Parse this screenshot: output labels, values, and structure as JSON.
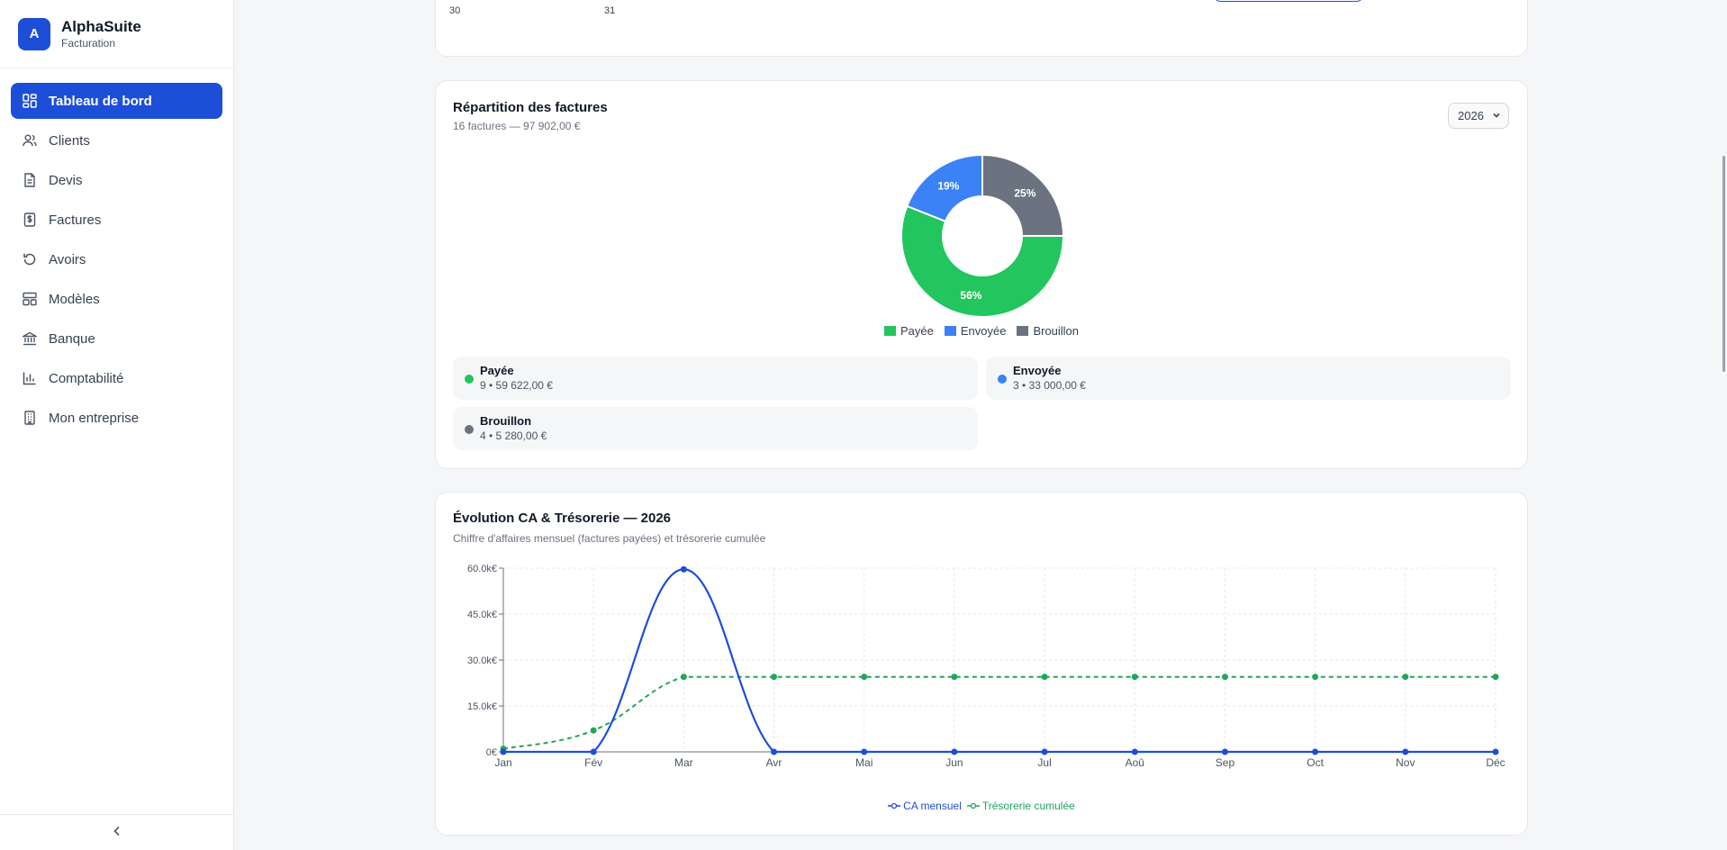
{
  "app": {
    "name": "AlphaSuite",
    "subtitle": "Facturation",
    "logo_letter": "A"
  },
  "nav": [
    {
      "label": "Tableau de bord",
      "icon": "dashboard-icon",
      "active": true
    },
    {
      "label": "Clients",
      "icon": "users-icon"
    },
    {
      "label": "Devis",
      "icon": "document-icon"
    },
    {
      "label": "Factures",
      "icon": "invoice-icon"
    },
    {
      "label": "Avoirs",
      "icon": "refund-icon"
    },
    {
      "label": "Modèles",
      "icon": "template-icon"
    },
    {
      "label": "Banque",
      "icon": "bank-icon"
    },
    {
      "label": "Comptabilité",
      "icon": "bar-chart-icon"
    },
    {
      "label": "Mon entreprise",
      "icon": "building-icon"
    }
  ],
  "top_card": {
    "ticks": [
      "30",
      "31"
    ]
  },
  "invoices": {
    "title": "Répartition des factures",
    "subtitle": "16 factures — 97 902,00 €",
    "year": "2026",
    "legend": [
      {
        "label": "Payée",
        "color": "#22c55e"
      },
      {
        "label": "Envoyée",
        "color": "#3b82f6"
      },
      {
        "label": "Brouillon",
        "color": "#6b7280"
      }
    ],
    "stats": [
      {
        "label": "Payée",
        "value": "9 • 59 622,00 €",
        "color": "#22c55e"
      },
      {
        "label": "Envoyée",
        "value": "3 • 33 000,00 €",
        "color": "#3b82f6"
      },
      {
        "label": "Brouillon",
        "value": "4 • 5 280,00 €",
        "color": "#6b7280"
      }
    ]
  },
  "evolution": {
    "title": "Évolution CA & Trésorerie — 2026",
    "subtitle": "Chiffre d'affaires mensuel (factures payées) et trésorerie cumulée"
  },
  "chart_data": [
    {
      "type": "pie",
      "categories": [
        "Payée",
        "Envoyée",
        "Brouillon"
      ],
      "values": [
        56,
        19,
        25
      ],
      "labels": [
        "56%",
        "19%",
        "25%"
      ],
      "colors": [
        "#22c55e",
        "#3b82f6",
        "#6b7280"
      ],
      "donut": true,
      "legend": "bottom"
    },
    {
      "type": "line",
      "categories": [
        "Jan",
        "Fév",
        "Mar",
        "Avr",
        "Mai",
        "Jun",
        "Jul",
        "Aoû",
        "Sep",
        "Oct",
        "Nov",
        "Déc"
      ],
      "series": [
        {
          "name": "CA mensuel",
          "color": "#1d4ed8",
          "dashed": false,
          "values": [
            0,
            0,
            59622,
            0,
            0,
            0,
            0,
            0,
            0,
            0,
            0,
            0
          ]
        },
        {
          "name": "Trésorerie cumulée",
          "color": "#22a55a",
          "dashed": true,
          "values": [
            1000,
            7000,
            24500,
            24500,
            24500,
            24500,
            24500,
            24500,
            24500,
            24500,
            24500,
            24500
          ]
        }
      ],
      "yticks": [
        "0€",
        "15.0k€",
        "30.0k€",
        "45.0k€",
        "60.0k€"
      ],
      "ylim": [
        0,
        60000
      ],
      "grid": true,
      "legend": "bottom"
    }
  ]
}
